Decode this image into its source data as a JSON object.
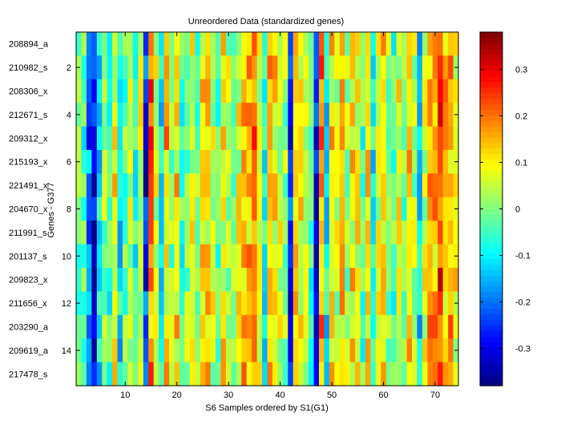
{
  "chart_data": {
    "type": "heatmap",
    "title": "Unreordered Data (standardized genes)",
    "xlabel": "S6 Samples ordered by S1(G1)",
    "ylabel": "Genes - G377",
    "x_range": [
      0.5,
      74.5
    ],
    "x_ticks": [
      10,
      20,
      30,
      40,
      50,
      60,
      70
    ],
    "n_cols": 74,
    "gene_labels": [
      "208894_a",
      "210982_s",
      "208306_x",
      "212671_s",
      "209312_x",
      "215193_x",
      "221491_x",
      "204670_x",
      "211991_s",
      "201137_s",
      "209823_x",
      "211656_x",
      "203290_a",
      "209619_a",
      "217478_s"
    ],
    "y_ticks": [
      2,
      4,
      6,
      8,
      10,
      12,
      14
    ],
    "colorbar": {
      "colormap": "jet",
      "clim": [
        -0.38,
        0.38
      ],
      "ticks": [
        -0.3,
        -0.2,
        -0.1,
        0,
        0.1,
        0.2,
        0.3
      ],
      "tick_labels": [
        "-0.3",
        "-0.2",
        "-0.1",
        "0",
        "0.1",
        "0.2",
        "0.3"
      ]
    },
    "column_profile": [
      -0.02,
      -0.04,
      -0.2,
      -0.33,
      -0.1,
      0.02,
      -0.05,
      0.1,
      -0.1,
      -0.02,
      0.04,
      -0.06,
      0.06,
      -0.26,
      0.22,
      0.05,
      -0.1,
      0.14,
      0.0,
      0.12,
      -0.04,
      0.02,
      0.08,
      -0.02,
      0.1,
      0.12,
      0.06,
      -0.02,
      0.1,
      0.04,
      0.02,
      0.08,
      0.14,
      0.16,
      0.2,
      0.06,
      -0.1,
      0.16,
      0.1,
      0.06,
      0.02,
      -0.28,
      0.12,
      0.1,
      0.04,
      -0.04,
      -0.3,
      0.18,
      -0.1,
      0.12,
      0.04,
      0.12,
      0.02,
      0.1,
      0.08,
      -0.04,
      0.14,
      -0.08,
      0.06,
      0.1,
      0.02,
      -0.04,
      0.08,
      0.0,
      0.12,
      0.04,
      -0.12,
      0.06,
      0.16,
      0.18,
      0.24,
      0.12,
      0.16,
      0.08
    ]
  }
}
